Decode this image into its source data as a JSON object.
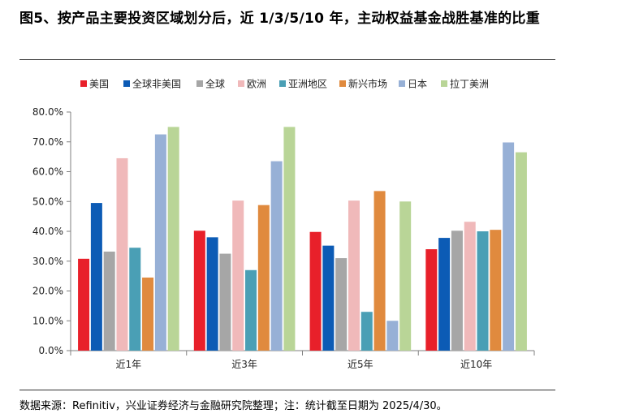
{
  "figure": {
    "title": "图5、按产品主要投资区域划分后，近 1/3/5/10 年，主动权益基金战胜基准的比重",
    "source": "数据来源：Refinitiv，兴业证券经济与金融研究院整理；注：统计截至日期为 2025/4/30。"
  },
  "chart_data": {
    "type": "bar",
    "title": "",
    "xlabel": "",
    "ylabel": "",
    "ylim": [
      0,
      80
    ],
    "yticks": [
      "0.0%",
      "10.0%",
      "20.0%",
      "30.0%",
      "40.0%",
      "50.0%",
      "60.0%",
      "70.0%",
      "80.0%"
    ],
    "grid": false,
    "legend_position": "top",
    "categories": [
      "近1年",
      "近3年",
      "近5年",
      "近10年"
    ],
    "series": [
      {
        "name": "美国",
        "color": "#e8202a",
        "values": [
          30.8,
          40.2,
          39.8,
          34.0
        ]
      },
      {
        "name": "全球非美国",
        "color": "#0c5bb5",
        "values": [
          49.5,
          38.0,
          35.2,
          37.8
        ]
      },
      {
        "name": "全球",
        "color": "#a6a6a6",
        "values": [
          33.2,
          32.5,
          31.0,
          40.2
        ]
      },
      {
        "name": "欧洲",
        "color": "#f0b9ba",
        "values": [
          64.5,
          50.3,
          50.3,
          43.2
        ]
      },
      {
        "name": "亚洲地区",
        "color": "#4a9fb5",
        "values": [
          34.5,
          27.0,
          13.0,
          40.0
        ]
      },
      {
        "name": "新兴市场",
        "color": "#e08a3e",
        "values": [
          24.5,
          48.8,
          53.5,
          40.5
        ]
      },
      {
        "name": "日本",
        "color": "#97b0d6",
        "values": [
          72.5,
          63.5,
          10.0,
          69.8
        ]
      },
      {
        "name": "拉丁美洲",
        "color": "#b9d597",
        "values": [
          75.0,
          75.0,
          50.0,
          66.5
        ]
      }
    ]
  }
}
